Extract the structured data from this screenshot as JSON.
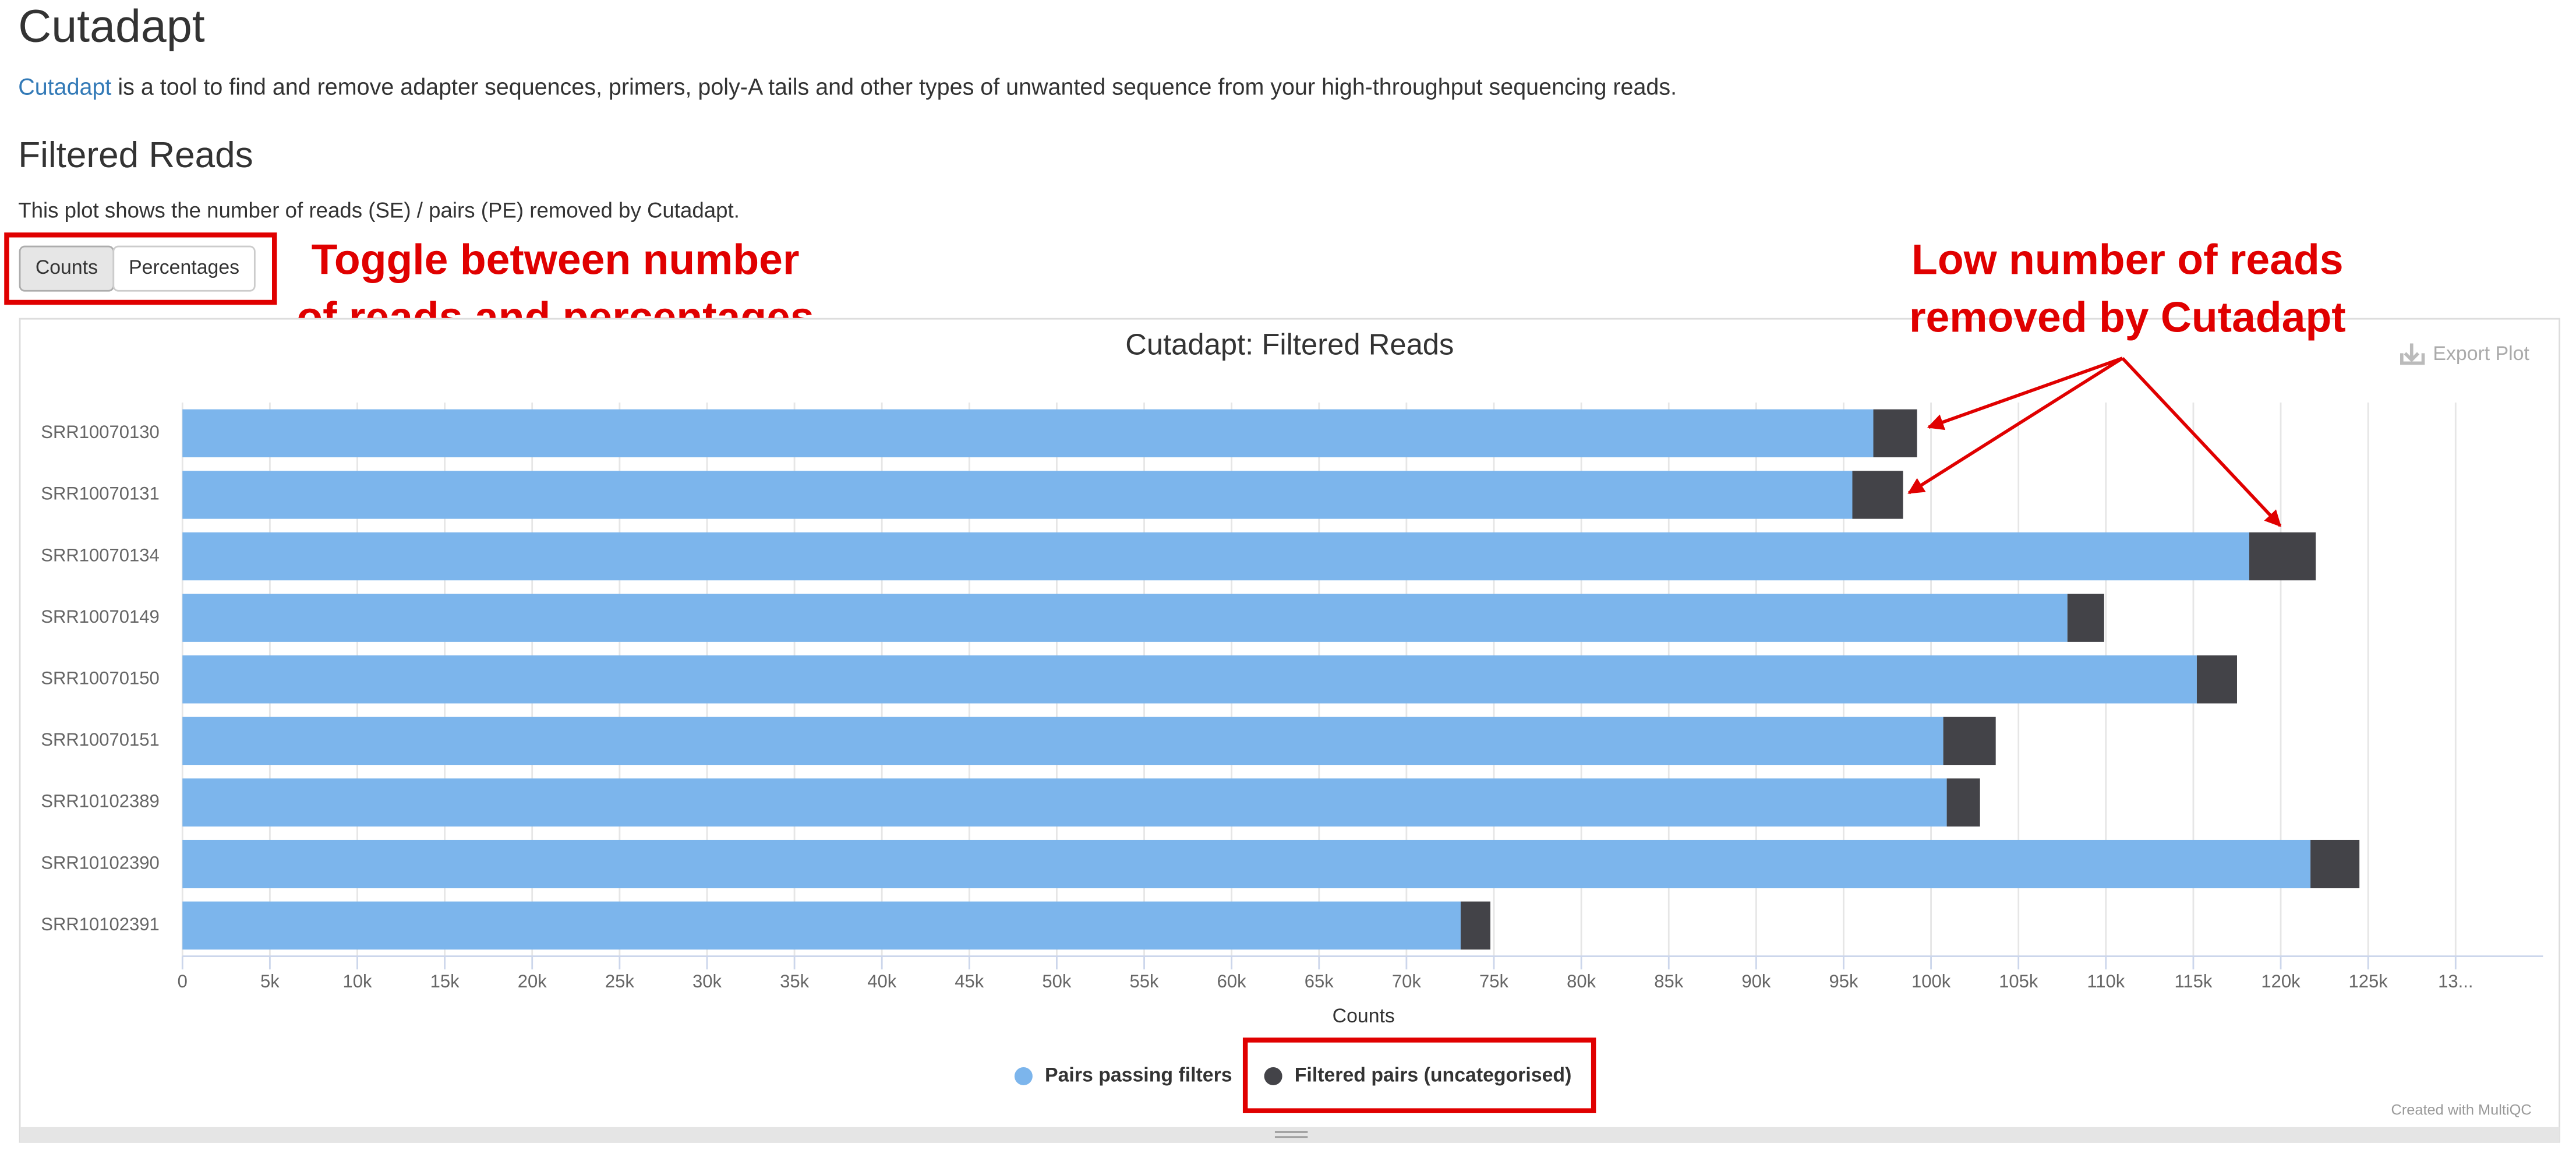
{
  "header": {
    "title": "Cutadapt",
    "intro_link": "Cutadapt",
    "intro_text": "is a tool to find and remove adapter sequences, primers, poly-A tails and other types of unwanted sequence from your high-throughput sequencing reads."
  },
  "section": {
    "title": "Filtered Reads",
    "description": "This plot shows the number of reads (SE) / pairs (PE) removed by Cutadapt.",
    "buttons": [
      "Counts",
      "Percentages"
    ]
  },
  "annotations": {
    "toggle": [
      "Toggle between number",
      "of reads and percentages"
    ],
    "low": [
      "Low number of reads",
      "removed by Cutadapt"
    ]
  },
  "export": "Export Plot",
  "credit": "Created with MultiQC",
  "chart_data": {
    "type": "stacked_barh",
    "title": "Cutadapt: Filtered Reads",
    "x_label": "Counts",
    "categories": [
      "SRR10070130",
      "SRR10070131",
      "SRR10070134",
      "SRR10070149",
      "SRR10070150",
      "SRR10070151",
      "SRR10102389",
      "SRR10102390",
      "SRR10102391"
    ],
    "series": [
      {
        "name": "Pairs passing filters",
        "color": "#7cb5ec",
        "values": [
          96700,
          95500,
          118200,
          107800,
          115200,
          100700,
          100900,
          121700,
          73100
        ]
      },
      {
        "name": "Filtered pairs (uncategorised)",
        "color": "#434348",
        "values": [
          2500,
          2900,
          3800,
          2100,
          2300,
          3000,
          1900,
          2800,
          1700
        ]
      }
    ],
    "xlim": [
      0,
      135000
    ],
    "xticks": [
      0,
      {
        "value": 5000,
        "label": "5k"
      },
      {
        "value": 10000,
        "label": "10k"
      },
      {
        "value": 15000,
        "label": "15k"
      },
      {
        "value": 20000,
        "label": "20k"
      },
      {
        "value": 25000,
        "label": "25k"
      },
      {
        "value": 30000,
        "label": "30k"
      },
      {
        "value": 35000,
        "label": "35k"
      },
      {
        "value": 40000,
        "label": "40k"
      },
      {
        "value": 45000,
        "label": "45k"
      },
      {
        "value": 50000,
        "label": "50k"
      },
      {
        "value": 55000,
        "label": "55k"
      },
      {
        "value": 60000,
        "label": "60k"
      },
      {
        "value": 65000,
        "label": "65k"
      },
      {
        "value": 70000,
        "label": "70k"
      },
      {
        "value": 75000,
        "label": "75k"
      },
      {
        "value": 80000,
        "label": "80k"
      },
      {
        "value": 85000,
        "label": "85k"
      },
      {
        "value": 90000,
        "label": "90k"
      },
      {
        "value": 95000,
        "label": "95k"
      },
      {
        "value": 100000,
        "label": "100k"
      },
      {
        "value": 105000,
        "label": "105k"
      },
      {
        "value": 110000,
        "label": "110k"
      },
      {
        "value": 115000,
        "label": "115k"
      },
      {
        "value": 120000,
        "label": "120k"
      },
      {
        "value": 125000,
        "label": "125k"
      },
      {
        "value": 130000,
        "label": "13..."
      }
    ],
    "grid": true
  }
}
